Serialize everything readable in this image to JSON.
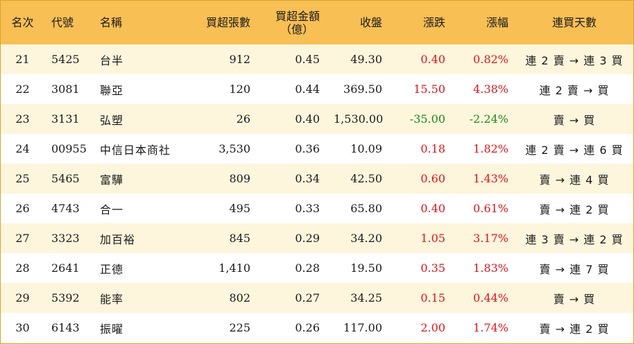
{
  "headers": {
    "rank": "名次",
    "code": "代號",
    "name": "名稱",
    "net_buy_lots": "買超張數",
    "net_buy_amount_line1": "買超金額",
    "net_buy_amount_line2": "（億）",
    "close": "收盤",
    "change": "漲跌",
    "change_pct": "漲幅",
    "streak": "連買天數"
  },
  "rows": [
    {
      "rank": "21",
      "code": "5425",
      "name": "台半",
      "lots": "912",
      "amount": "0.45",
      "close": "49.30",
      "change": "0.40",
      "pct": "0.82%",
      "streak": "連 2 賣 → 連 3 買",
      "direction": "up"
    },
    {
      "rank": "22",
      "code": "3081",
      "name": "聯亞",
      "lots": "120",
      "amount": "0.44",
      "close": "369.50",
      "change": "15.50",
      "pct": "4.38%",
      "streak": "連 2 賣 → 買",
      "direction": "up"
    },
    {
      "rank": "23",
      "code": "3131",
      "name": "弘塑",
      "lots": "26",
      "amount": "0.40",
      "close": "1,530.00",
      "change": "-35.00",
      "pct": "-2.24%",
      "streak": "賣 → 買",
      "direction": "down"
    },
    {
      "rank": "24",
      "code": "00955",
      "name": "中信日本商社",
      "lots": "3,530",
      "amount": "0.36",
      "close": "10.09",
      "change": "0.18",
      "pct": "1.82%",
      "streak": "連 2 賣 → 連 6 買",
      "direction": "up"
    },
    {
      "rank": "25",
      "code": "5465",
      "name": "富驊",
      "lots": "809",
      "amount": "0.34",
      "close": "42.50",
      "change": "0.60",
      "pct": "1.43%",
      "streak": "賣 → 連 4 買",
      "direction": "up"
    },
    {
      "rank": "26",
      "code": "4743",
      "name": "合一",
      "lots": "495",
      "amount": "0.33",
      "close": "65.80",
      "change": "0.40",
      "pct": "0.61%",
      "streak": "賣 → 連 2 買",
      "direction": "up"
    },
    {
      "rank": "27",
      "code": "3323",
      "name": "加百裕",
      "lots": "845",
      "amount": "0.29",
      "close": "34.20",
      "change": "1.05",
      "pct": "3.17%",
      "streak": "連 3 賣 → 連 2 買",
      "direction": "up"
    },
    {
      "rank": "28",
      "code": "2641",
      "name": "正德",
      "lots": "1,410",
      "amount": "0.28",
      "close": "19.50",
      "change": "0.35",
      "pct": "1.83%",
      "streak": "賣 → 連 7 買",
      "direction": "up"
    },
    {
      "rank": "29",
      "code": "5392",
      "name": "能率",
      "lots": "802",
      "amount": "0.27",
      "close": "34.25",
      "change": "0.15",
      "pct": "0.44%",
      "streak": "賣 → 買",
      "direction": "up"
    },
    {
      "rank": "30",
      "code": "6143",
      "name": "振曜",
      "lots": "225",
      "amount": "0.26",
      "close": "117.00",
      "change": "2.00",
      "pct": "1.74%",
      "streak": "賣 → 連 2 買",
      "direction": "up"
    }
  ],
  "colors": {
    "header_bg": "#f7bf54",
    "stripe_bg": "#fdf5dc",
    "up": "#e2141b",
    "down": "#1d8a1d"
  }
}
